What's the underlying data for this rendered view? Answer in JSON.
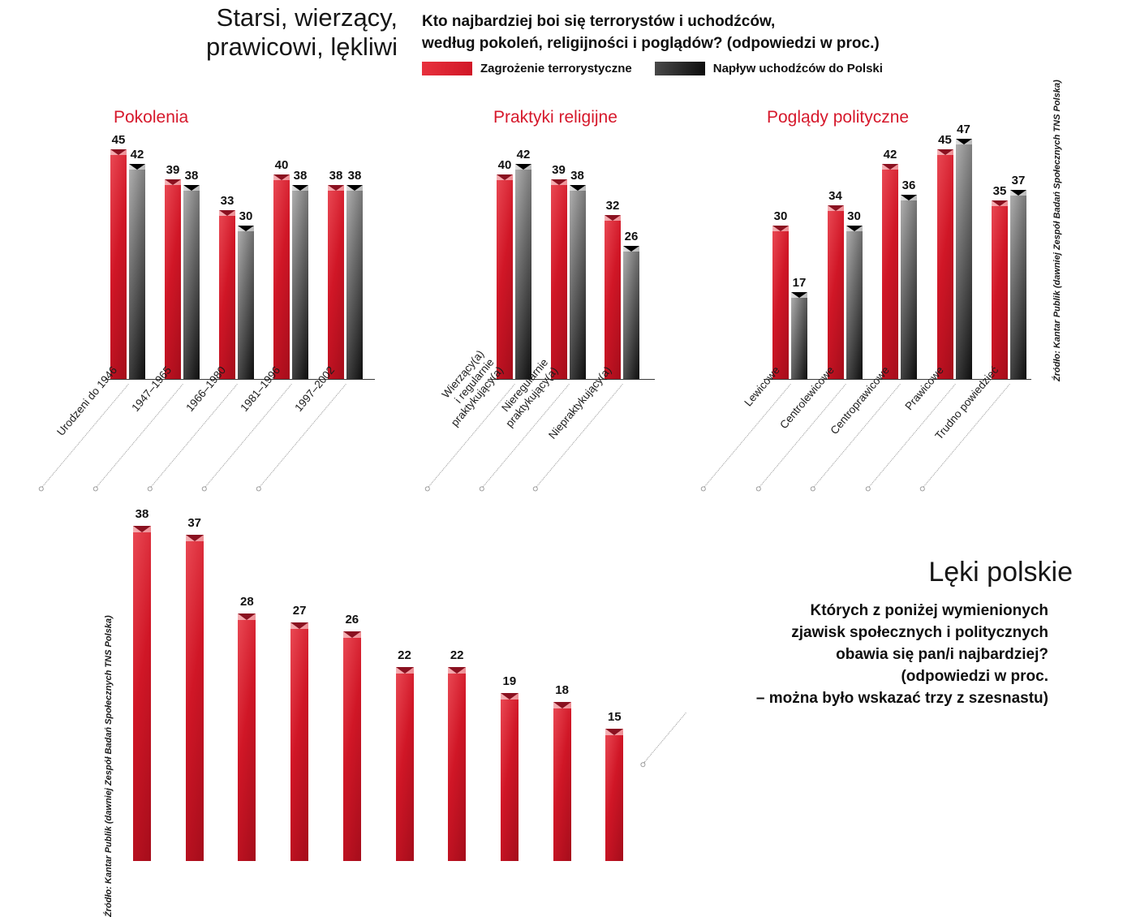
{
  "title": "Starsi, wierzący,\nprawicowi, lękliwi",
  "question": "Kto najbardziej boi się terrorystów i uchodźców,\nwedług pokoleń, religijności i poglądów? (odpowiedzi w proc.)",
  "legend": [
    {
      "label": "Zagrożenie terrorystyczne",
      "color": "#d6182b"
    },
    {
      "label": "Napływ uchodźców do Polski",
      "color": "#111111"
    }
  ],
  "source": "Źródło: Kantar Publik (dawniej Zespół Badań Społecznych TNS Polska)",
  "colors": {
    "red": "#d6182b",
    "black": "#111111",
    "leader_gray": "#9a9a9a"
  },
  "leki": {
    "question": "Których z poniżej wymienionych\nzjawisk społecznych i politycznych\nobawia się pan/i najbardziej?\n(odpowiedzi w proc.\n– można było wskazać trzy z szesnastu)"
  },
  "chart_data": [
    {
      "type": "bar",
      "title": "Pokolenia",
      "categories": [
        "Urodzeni do 1946",
        "1947–1965",
        "1966–1980",
        "1981–1996",
        "1997–2002"
      ],
      "series": [
        {
          "name": "Zagrożenie terrorystyczne",
          "values": [
            45,
            39,
            33,
            40,
            38
          ]
        },
        {
          "name": "Napływ uchodźców do Polski",
          "values": [
            42,
            38,
            30,
            38,
            38
          ]
        }
      ],
      "ylim": [
        0,
        47
      ],
      "grid": false,
      "legend_position": "top"
    },
    {
      "type": "bar",
      "title": "Praktyki religijne",
      "categories": [
        "Wierzący(a)\ni regularnie\npraktykujący(a)",
        "Nieregularnie\npraktykujący(a)",
        "Niepraktykujący(a)"
      ],
      "series": [
        {
          "name": "Zagrożenie terrorystyczne",
          "values": [
            40,
            39,
            32
          ]
        },
        {
          "name": "Napływ uchodźców do Polski",
          "values": [
            42,
            38,
            26
          ]
        }
      ],
      "ylim": [
        0,
        47
      ],
      "grid": false,
      "legend_position": "top"
    },
    {
      "type": "bar",
      "title": "Poglądy polityczne",
      "categories": [
        "Lewicowe",
        "Centrolewicowe",
        "Centroprawicowe",
        "Prawicowe",
        "Trudno powiedzieć"
      ],
      "series": [
        {
          "name": "Zagrożenie terrorystyczne",
          "values": [
            30,
            34,
            42,
            45,
            35
          ]
        },
        {
          "name": "Napływ uchodźców do Polski",
          "values": [
            17,
            30,
            36,
            47,
            37
          ]
        }
      ],
      "ylim": [
        0,
        47
      ],
      "grid": false,
      "legend_position": "top"
    },
    {
      "type": "bar",
      "title": "Lęki polskie",
      "categories": [],
      "values": [
        38,
        37,
        28,
        27,
        26,
        22,
        22,
        19,
        18,
        15
      ],
      "note": "category labels cut off at bottom edge of image",
      "grid": false
    }
  ]
}
